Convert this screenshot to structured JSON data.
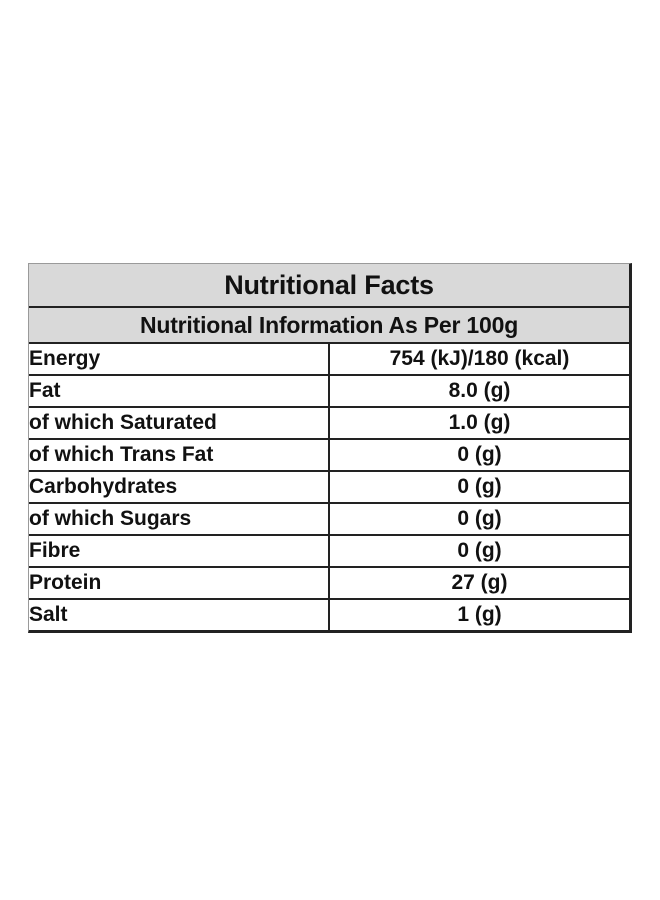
{
  "title": "Nutritional Facts",
  "subtitle": "Nutritional Information As Per 100g",
  "rows": [
    {
      "nutrient": "Energy",
      "value": "754 (kJ)/180 (kcal)"
    },
    {
      "nutrient": "Fat",
      "value": "8.0 (g)"
    },
    {
      "nutrient": "of which Saturated",
      "value": "1.0 (g)"
    },
    {
      "nutrient": "of which Trans Fat",
      "value": "0 (g)"
    },
    {
      "nutrient": "Carbohydrates",
      "value": "0 (g)"
    },
    {
      "nutrient": "of which Sugars",
      "value": "0 (g)"
    },
    {
      "nutrient": "Fibre",
      "value": "0 (g)"
    },
    {
      "nutrient": "Protein",
      "value": "27 (g)"
    },
    {
      "nutrient": "Salt",
      "value": "1 (g)"
    }
  ]
}
